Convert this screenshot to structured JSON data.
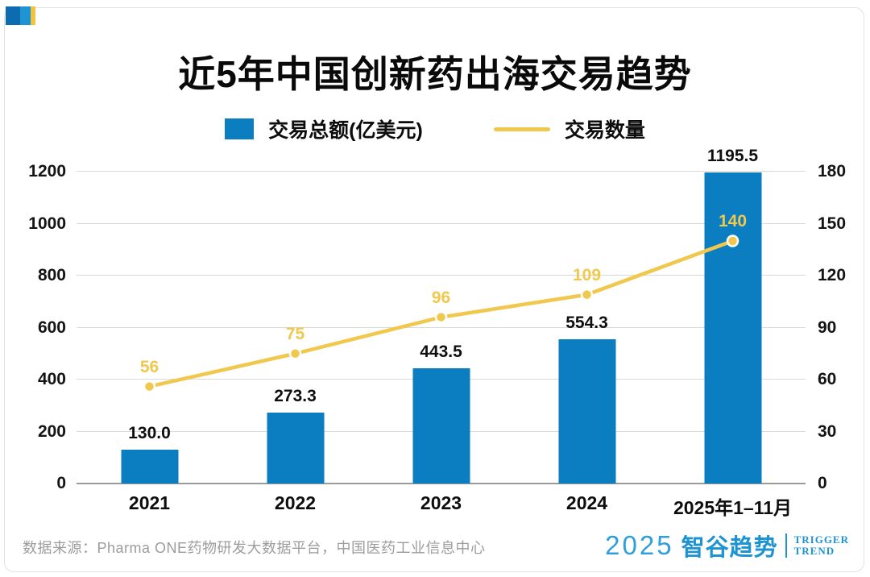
{
  "header": {
    "title": "近5年中国创新药出海交易趋势"
  },
  "chart_data": {
    "type": "bar+line combo",
    "categories": [
      "2021",
      "2022",
      "2023",
      "2024",
      "2025年1–11月"
    ],
    "series": [
      {
        "name": "交易总额(亿美元)",
        "type": "bar",
        "axis": "left",
        "color": "#0b7dc1",
        "values": [
          130.0,
          273.3,
          443.5,
          554.3,
          1195.5
        ],
        "labels": [
          "130.0",
          "273.3",
          "443.5",
          "554.3",
          "1195.5"
        ]
      },
      {
        "name": "交易数量",
        "type": "line",
        "axis": "right",
        "color": "#f0c84e",
        "values": [
          56,
          75,
          96,
          109,
          140
        ],
        "labels": [
          "56",
          "75",
          "96",
          "109",
          "140"
        ]
      }
    ],
    "left_axis": {
      "min": 0,
      "max": 1200,
      "step": 200,
      "ticks": [
        "0",
        "200",
        "400",
        "600",
        "800",
        "1000",
        "1200"
      ]
    },
    "right_axis": {
      "min": 0,
      "max": 180,
      "step": 30,
      "ticks": [
        "0",
        "30",
        "60",
        "90",
        "120",
        "150",
        "180"
      ]
    },
    "grid": true,
    "legend_position": "top",
    "marker_stroke_color": "#ffffff"
  },
  "footer": {
    "source": "数据来源：Pharma ONE药物研发大数据平台，中国医药工业信息中心"
  },
  "logo": {
    "year": "2025",
    "brand": "智谷趋势",
    "tagline_line1": "TRIGGER",
    "tagline_line2": "TREND",
    "color": "#1e93d2"
  },
  "corner_mark_colors": [
    "#0d6cb0",
    "#1e95d2",
    "#f1c33e"
  ]
}
